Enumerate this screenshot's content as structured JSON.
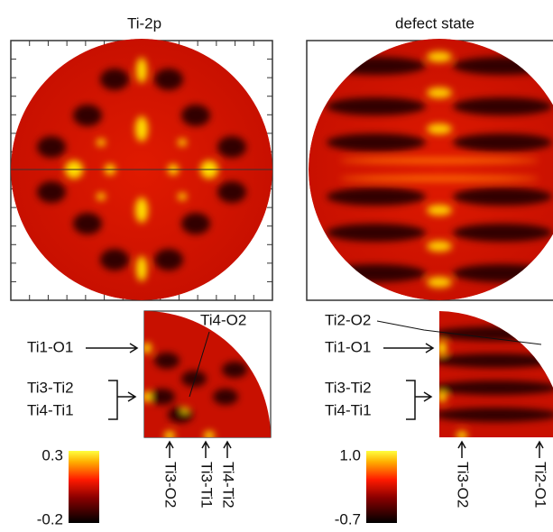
{
  "panels": [
    {
      "title": "Ti-2p",
      "labels": [
        "Ti1-O1",
        "Ti3-Ti2",
        "Ti4-Ti1",
        "Ti4-O2"
      ],
      "bottom_labels": [
        "Ti3-O2",
        "Ti3-Ti1",
        "Ti4-Ti2"
      ],
      "colorbar": {
        "max": 0.3,
        "min": -0.2
      }
    },
    {
      "title": "defect state",
      "labels": [
        "Ti2-O2",
        "Ti1-O1",
        "Ti3-Ti2",
        "Ti4-Ti1"
      ],
      "bottom_labels": [
        "Ti3-O2",
        "Ti2-O1"
      ],
      "colorbar": {
        "max": {
          "value": 1.0,
          "label": "1.0"
        },
        "min": -0.7
      }
    }
  ]
}
